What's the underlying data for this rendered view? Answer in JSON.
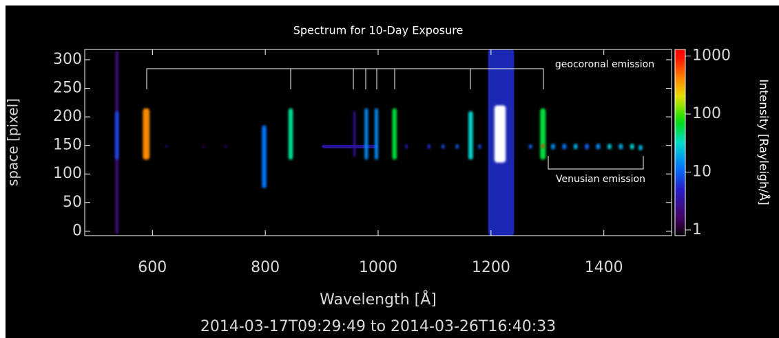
{
  "chart_data": {
    "type": "spectrum_image",
    "title": "Spectrum for 10-Day Exposure",
    "subtitle": "2014-03-17T09:29:49 to 2014-03-26T16:40:33",
    "x_label": "Wavelength [Å]",
    "y_label": "space [pixel]",
    "colorbar_label": "Intensity [Rayleigh/Å]",
    "annotations": [
      "geocoronal emission",
      "Venusian emission"
    ],
    "xlim": [
      480,
      1520
    ],
    "ylim": [
      -8,
      318
    ],
    "xticks": [
      600,
      800,
      1000,
      1200,
      1400
    ],
    "yticks": [
      0,
      50,
      100,
      150,
      200,
      250,
      300
    ],
    "clim": [
      0.8,
      1300
    ],
    "cticks": [
      1,
      10,
      100,
      1000
    ],
    "color_scale": "log",
    "features": [
      {
        "wavelength": 537,
        "width": 6,
        "y": [
          -5,
          315
        ],
        "intensity": 2
      },
      {
        "wavelength": 1218,
        "width": 46,
        "y": [
          -8,
          318
        ],
        "intensity": 6
      },
      {
        "wavelength": 950,
        "width": 100,
        "y": [
          145,
          151
        ],
        "intensity": 4
      },
      {
        "wavelength": 537,
        "width": 6,
        "y": [
          125,
          210
        ],
        "intensity": 8
      },
      {
        "wavelength": 589,
        "width": 12,
        "y": [
          125,
          215
        ],
        "intensity": 400
      },
      {
        "wavelength": 798,
        "width": 8,
        "y": [
          75,
          185
        ],
        "intensity": 12
      },
      {
        "wavelength": 845,
        "width": 8,
        "y": [
          125,
          215
        ],
        "intensity": 40
      },
      {
        "wavelength": 958,
        "width": 4,
        "y": [
          130,
          210
        ],
        "intensity": 3
      },
      {
        "wavelength": 979,
        "width": 6,
        "y": [
          125,
          215
        ],
        "intensity": 15
      },
      {
        "wavelength": 997,
        "width": 6,
        "y": [
          125,
          215
        ],
        "intensity": 15
      },
      {
        "wavelength": 1029,
        "width": 8,
        "y": [
          125,
          215
        ],
        "intensity": 60
      },
      {
        "wavelength": 1164,
        "width": 8,
        "y": [
          125,
          210
        ],
        "intensity": 30
      },
      {
        "wavelength": 1216,
        "width": 20,
        "y": [
          120,
          220
        ],
        "intensity": 1300
      },
      {
        "wavelength": 1292,
        "width": 10,
        "y": [
          125,
          215
        ],
        "intensity": 60
      },
      {
        "wavelength": 1292,
        "width": 4,
        "y": [
          145,
          152
        ],
        "intensity": 800
      },
      {
        "wavelength": 625,
        "width": 3,
        "y": [
          145,
          151
        ],
        "intensity": 3
      },
      {
        "wavelength": 690,
        "width": 3,
        "y": [
          145,
          151
        ],
        "intensity": 2
      },
      {
        "wavelength": 730,
        "width": 3,
        "y": [
          145,
          151
        ],
        "intensity": 3
      },
      {
        "wavelength": 1050,
        "width": 4,
        "y": [
          144,
          152
        ],
        "intensity": 5
      },
      {
        "wavelength": 1090,
        "width": 5,
        "y": [
          144,
          152
        ],
        "intensity": 6
      },
      {
        "wavelength": 1115,
        "width": 5,
        "y": [
          144,
          152
        ],
        "intensity": 8
      },
      {
        "wavelength": 1140,
        "width": 5,
        "y": [
          144,
          152
        ],
        "intensity": 10
      },
      {
        "wavelength": 1180,
        "width": 5,
        "y": [
          144,
          152
        ],
        "intensity": 8
      },
      {
        "wavelength": 1270,
        "width": 6,
        "y": [
          144,
          152
        ],
        "intensity": 10
      },
      {
        "wavelength": 1310,
        "width": 7,
        "y": [
          143,
          153
        ],
        "intensity": 15
      },
      {
        "wavelength": 1330,
        "width": 7,
        "y": [
          143,
          153
        ],
        "intensity": 12
      },
      {
        "wavelength": 1350,
        "width": 7,
        "y": [
          143,
          153
        ],
        "intensity": 20
      },
      {
        "wavelength": 1370,
        "width": 7,
        "y": [
          143,
          153
        ],
        "intensity": 10
      },
      {
        "wavelength": 1390,
        "width": 7,
        "y": [
          143,
          153
        ],
        "intensity": 15
      },
      {
        "wavelength": 1410,
        "width": 7,
        "y": [
          143,
          153
        ],
        "intensity": 25
      },
      {
        "wavelength": 1430,
        "width": 7,
        "y": [
          143,
          153
        ],
        "intensity": 20
      },
      {
        "wavelength": 1450,
        "width": 7,
        "y": [
          143,
          153
        ],
        "intensity": 30
      },
      {
        "wavelength": 1465,
        "width": 7,
        "y": [
          141,
          151
        ],
        "intensity": 20
      }
    ]
  }
}
